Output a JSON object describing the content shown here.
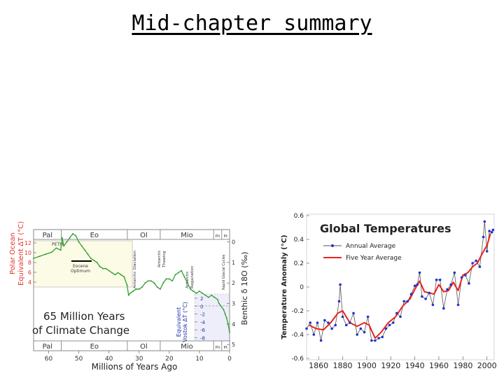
{
  "slide": {
    "title": "Mid-chapter summary"
  },
  "chart_data": [
    {
      "type": "line",
      "title": "65 Million Years of Climate Change",
      "title_lines": [
        "65 Million Years",
        "of Climate Change"
      ],
      "xlabel": "Millions of Years Ago",
      "xlim": [
        65,
        0
      ],
      "x_ticks": [
        60,
        50,
        40,
        30,
        20,
        10,
        0
      ],
      "ylabel_left": [
        "Polar Ocean",
        "Equivalent ΔT (°C)"
      ],
      "y_left_ticks": [
        12,
        10,
        8,
        6,
        4
      ],
      "ylabel_right": "Benthic δ 18O (‰)",
      "y_right_ticks": [
        0,
        1,
        2,
        3,
        4,
        5
      ],
      "ylim_right": [
        -0.6,
        5.3
      ],
      "ylabel_inset": [
        "Equivalent",
        "Vostok ΔT (°C)"
      ],
      "y_inset_ticks": [
        2,
        0,
        -2,
        -4,
        -6,
        -8
      ],
      "epochs": [
        "Pal",
        "Eo",
        "Ol",
        "Mio",
        "Pli",
        "Pt"
      ],
      "epoch_bounds": [
        65,
        55.8,
        33.9,
        23,
        5.3,
        2.6,
        0
      ],
      "annotations": [
        "PETM",
        "Eocene Optimum",
        "Antarctic Glaciation",
        "Antarctic Thawing",
        "Antarctic Regaciation",
        "Rapid Glacial Cycles"
      ],
      "series": [
        {
          "x": [
            65,
            63,
            61,
            59,
            57.5,
            56,
            55.5,
            55,
            54,
            53,
            52,
            51,
            50,
            49,
            48,
            47,
            46,
            45,
            44,
            43,
            42,
            41,
            40,
            39,
            38,
            37,
            36,
            35,
            34,
            33.5,
            33,
            32,
            31,
            30,
            29,
            28,
            27,
            26,
            25,
            24,
            23,
            22,
            21,
            20,
            19,
            18,
            17,
            16,
            15,
            14,
            13,
            12,
            11,
            10,
            9,
            8,
            7,
            6,
            5,
            4,
            3.5,
            3,
            2.5,
            2,
            1.5,
            1,
            0.5,
            0
          ],
          "values": [
            0.8,
            0.7,
            0.6,
            0.5,
            0.3,
            0.4,
            -0.2,
            0.2,
            0.0,
            -0.2,
            -0.4,
            -0.3,
            0.0,
            0.2,
            0.4,
            0.6,
            0.8,
            0.9,
            1.0,
            1.2,
            1.3,
            1.3,
            1.4,
            1.5,
            1.6,
            1.5,
            1.6,
            1.7,
            2.1,
            2.6,
            2.5,
            2.4,
            2.3,
            2.3,
            2.2,
            2.0,
            1.9,
            1.9,
            2.0,
            2.2,
            2.3,
            2.0,
            1.8,
            1.8,
            1.9,
            1.6,
            1.5,
            1.4,
            1.7,
            2.0,
            2.3,
            2.4,
            2.5,
            2.4,
            2.5,
            2.6,
            2.7,
            2.6,
            2.7,
            2.8,
            3.0,
            3.1,
            3.2,
            3.3,
            3.5,
            3.7,
            4.0,
            4.4
          ]
        }
      ]
    },
    {
      "type": "line",
      "title": "Global Temperatures",
      "ylabel": "Temperature Anomaly (°C)",
      "ylim": [
        -0.6,
        0.6
      ],
      "y_ticks": [
        "0.6",
        "0.4",
        "0.2",
        "0",
        "-0.2",
        "-0.4",
        "-0.6"
      ],
      "xlim": [
        1850,
        2006
      ],
      "x_ticks": [
        1860,
        1880,
        1900,
        1920,
        1940,
        1960,
        1980,
        2000
      ],
      "legend": "top-left",
      "colors": {
        "annual_line": "#555555",
        "annual_marker": "#2233cc",
        "five_year": "#e8221e"
      },
      "series": [
        {
          "name": "Annual Average",
          "x": [
            1850,
            1853,
            1856,
            1859,
            1862,
            1865,
            1868,
            1871,
            1874,
            1877,
            1878,
            1880,
            1883,
            1886,
            1889,
            1892,
            1895,
            1898,
            1901,
            1904,
            1907,
            1910,
            1913,
            1916,
            1919,
            1922,
            1925,
            1928,
            1931,
            1934,
            1937,
            1940,
            1942,
            1944,
            1946,
            1949,
            1952,
            1955,
            1958,
            1961,
            1964,
            1967,
            1970,
            1973,
            1976,
            1979,
            1982,
            1985,
            1988,
            1991,
            1994,
            1997,
            1998,
            2000,
            2002,
            2004,
            2005
          ],
          "values": [
            -0.35,
            -0.3,
            -0.4,
            -0.3,
            -0.45,
            -0.28,
            -0.3,
            -0.35,
            -0.32,
            -0.12,
            0.02,
            -0.25,
            -0.32,
            -0.3,
            -0.22,
            -0.4,
            -0.35,
            -0.38,
            -0.25,
            -0.45,
            -0.45,
            -0.43,
            -0.42,
            -0.35,
            -0.32,
            -0.3,
            -0.22,
            -0.25,
            -0.12,
            -0.12,
            -0.06,
            0.01,
            0.02,
            0.12,
            -0.08,
            -0.1,
            -0.05,
            -0.15,
            0.06,
            0.06,
            -0.18,
            -0.02,
            0.02,
            0.12,
            -0.15,
            0.08,
            0.1,
            0.03,
            0.2,
            0.22,
            0.17,
            0.42,
            0.55,
            0.3,
            0.47,
            0.46,
            0.48
          ]
        },
        {
          "name": "Five Year Average",
          "x": [
            1852,
            1858,
            1864,
            1870,
            1876,
            1880,
            1886,
            1892,
            1898,
            1902,
            1907,
            1912,
            1918,
            1924,
            1930,
            1936,
            1940,
            1944,
            1948,
            1952,
            1956,
            1960,
            1964,
            1968,
            1972,
            1976,
            1980,
            1984,
            1988,
            1992,
            1996,
            2000,
            2003
          ],
          "values": [
            -0.32,
            -0.35,
            -0.36,
            -0.3,
            -0.22,
            -0.2,
            -0.3,
            -0.33,
            -0.3,
            -0.32,
            -0.43,
            -0.38,
            -0.3,
            -0.25,
            -0.16,
            -0.1,
            -0.02,
            0.05,
            -0.04,
            -0.05,
            -0.06,
            0.02,
            -0.04,
            -0.03,
            0.04,
            -0.03,
            0.1,
            0.12,
            0.17,
            0.2,
            0.28,
            0.35,
            0.45
          ]
        }
      ]
    }
  ]
}
